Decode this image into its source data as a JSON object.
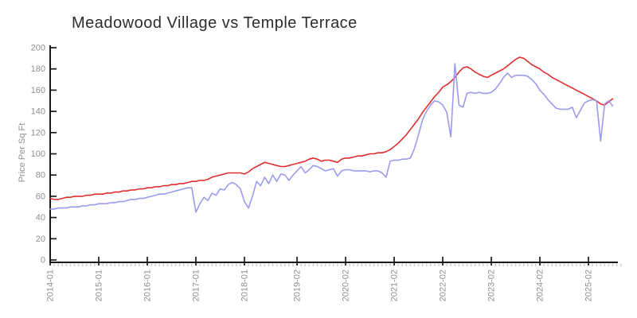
{
  "chart_data": {
    "type": "line",
    "title": "Meadowood Village vs Temple Terrace",
    "xlabel": "",
    "ylabel": "Price Per Sq Ft",
    "ylim": [
      0,
      200
    ],
    "yticks": [
      0,
      20,
      40,
      60,
      80,
      100,
      120,
      140,
      160,
      180,
      200
    ],
    "x_start": "2014-01",
    "x_end": "2025-08",
    "x_frequency": "monthly",
    "grid": false,
    "legend_position": "none",
    "xticks": [
      {
        "i": 0,
        "label": "2014-01"
      },
      {
        "i": 12,
        "label": "2015-01"
      },
      {
        "i": 24,
        "label": "2016-01"
      },
      {
        "i": 36,
        "label": "2017-01"
      },
      {
        "i": 48,
        "label": "2018-01"
      },
      {
        "i": 61,
        "label": "2019-02"
      },
      {
        "i": 73,
        "label": "2020-02"
      },
      {
        "i": 85,
        "label": "2021-02"
      },
      {
        "i": 97,
        "label": "2022-02"
      },
      {
        "i": 109,
        "label": "2023-02"
      },
      {
        "i": 121,
        "label": "2024-02"
      },
      {
        "i": 133,
        "label": "2025-02"
      }
    ],
    "series": [
      {
        "name": "Meadowood Village",
        "color": "#e02e2e",
        "values": [
          58,
          57,
          57,
          58,
          59,
          59,
          60,
          60,
          60,
          61,
          61,
          62,
          62,
          62,
          63,
          63,
          64,
          64,
          65,
          65,
          66,
          66,
          67,
          67,
          68,
          68,
          69,
          69,
          70,
          70,
          71,
          71,
          72,
          72,
          73,
          74,
          74,
          75,
          75,
          76,
          78,
          79,
          80,
          81,
          82,
          82,
          82,
          82,
          81,
          83,
          86,
          88,
          90,
          92,
          91,
          90,
          89,
          88,
          88,
          89,
          90,
          91,
          92,
          93,
          95,
          96,
          95,
          93,
          94,
          94,
          93,
          92,
          95,
          96,
          96,
          97,
          98,
          98,
          99,
          100,
          100,
          101,
          101,
          102,
          104,
          107,
          110,
          114,
          118,
          123,
          128,
          133,
          139,
          144,
          149,
          154,
          158,
          163,
          165,
          168,
          172,
          177,
          181,
          182,
          180,
          177,
          175,
          173,
          172,
          174,
          176,
          178,
          180,
          183,
          186,
          189,
          191,
          190,
          187,
          184,
          182,
          180,
          177,
          175,
          172,
          170,
          168,
          166,
          164,
          162,
          160,
          158,
          156,
          154,
          152,
          150,
          147,
          146,
          149,
          152
        ]
      },
      {
        "name": "Temple Terrace",
        "color": "#9b9bf0",
        "values": [
          48,
          48,
          49,
          49,
          49,
          50,
          50,
          50,
          51,
          51,
          52,
          52,
          53,
          53,
          53,
          54,
          54,
          55,
          55,
          56,
          57,
          57,
          58,
          58,
          59,
          60,
          61,
          62,
          62,
          63,
          64,
          65,
          66,
          67,
          68,
          68,
          45,
          53,
          59,
          56,
          63,
          61,
          67,
          66,
          71,
          73,
          71,
          67,
          55,
          49,
          60,
          74,
          70,
          78,
          72,
          80,
          74,
          81,
          80,
          75,
          80,
          84,
          88,
          82,
          85,
          89,
          88,
          86,
          84,
          85,
          86,
          79,
          84,
          85,
          85,
          84,
          84,
          84,
          84,
          83,
          84,
          84,
          82,
          78,
          93,
          94,
          94,
          95,
          95,
          96,
          105,
          118,
          132,
          140,
          146,
          150,
          149,
          146,
          139,
          116,
          185,
          146,
          144,
          157,
          158,
          157,
          158,
          157,
          157,
          158,
          161,
          166,
          172,
          176,
          172,
          174,
          174,
          174,
          173,
          170,
          166,
          160,
          156,
          151,
          147,
          143,
          142,
          142,
          142,
          144,
          134,
          141,
          148,
          150,
          151,
          150,
          112,
          147,
          150,
          145
        ]
      }
    ]
  },
  "colors": {
    "axis": "#1a1a1a",
    "tick_labels": "#8f8f8f",
    "minor_ticks": "#cfcfcf",
    "title_text": "#2d2d2d"
  }
}
